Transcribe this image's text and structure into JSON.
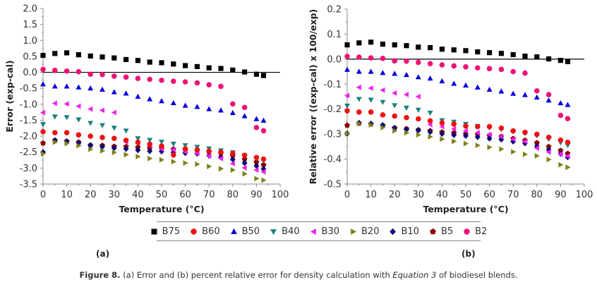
{
  "legend": {
    "items": [
      {
        "name": "B75",
        "color": "#000000",
        "marker": "square"
      },
      {
        "name": "B60",
        "color": "#ee1111",
        "marker": "circle"
      },
      {
        "name": "B50",
        "color": "#0000dd",
        "marker": "triangle-up"
      },
      {
        "name": "B40",
        "color": "#1a7f7f",
        "marker": "triangle-down"
      },
      {
        "name": "B30",
        "color": "#ee22ee",
        "marker": "triangle-left"
      },
      {
        "name": "B20",
        "color": "#808019",
        "marker": "triangle-right"
      },
      {
        "name": "B10",
        "color": "#0a0a7a",
        "marker": "diamond"
      },
      {
        "name": "B5",
        "color": "#8b0000",
        "marker": "pentagon"
      },
      {
        "name": "B2",
        "color": "#ee1177",
        "marker": "circle"
      }
    ]
  },
  "panel_labels": {
    "a": "(a)",
    "b": "(b)"
  },
  "caption": {
    "figure": "Figure 8.",
    "text_before": " (a) Error and (b) percent relative error for density calculation with ",
    "emphasis": "Equation 3",
    "text_after": " of biodiesel blends."
  },
  "chart_data": [
    {
      "id": "a",
      "type": "scatter",
      "title": "",
      "xlabel": "Temperature (°C)",
      "ylabel": "Error (exp-cal)",
      "xlim": [
        0,
        100
      ],
      "ylim": [
        -3.5,
        2.0
      ],
      "xticks": [
        0,
        10,
        20,
        30,
        40,
        50,
        60,
        70,
        80,
        90,
        100
      ],
      "yticks": [
        2.0,
        1.5,
        1.0,
        0.5,
        0.0,
        -0.5,
        -1.0,
        -1.5,
        -2.0,
        -2.5,
        -3.0,
        -3.5
      ],
      "ytick_labels": [
        "2.0",
        "1.5",
        "1.0",
        "0.5",
        "0.0",
        "-0.5",
        "-1.0",
        "-1.5",
        "-2.0",
        "-2.5",
        "-3.0",
        "-3.5"
      ],
      "zero_line": true,
      "grid": false,
      "legend_position": "bottom",
      "x": [
        0,
        5,
        10,
        15,
        20,
        25,
        30,
        35,
        40,
        45,
        50,
        55,
        60,
        65,
        70,
        75,
        80,
        85,
        90,
        93
      ],
      "series": [
        {
          "name": "B75",
          "values": [
            0.53,
            0.59,
            0.61,
            0.55,
            0.51,
            0.48,
            0.45,
            0.4,
            0.37,
            0.32,
            0.3,
            0.26,
            0.21,
            0.18,
            0.14,
            0.12,
            0.07,
            0.01,
            -0.06,
            -0.1
          ]
        },
        {
          "name": "B60",
          "values": [
            -1.86,
            -1.89,
            -1.89,
            -1.96,
            -2.0,
            -2.04,
            -2.07,
            -2.13,
            -2.19,
            -2.25,
            -2.31,
            -2.59,
            -2.4,
            -2.43,
            -2.47,
            -2.5,
            -2.54,
            -2.6,
            -2.67,
            -2.72
          ]
        },
        {
          "name": "B50",
          "values": [
            -0.37,
            -0.44,
            -0.44,
            -0.47,
            -0.5,
            -0.54,
            -0.62,
            -0.66,
            -0.76,
            -0.84,
            -0.9,
            -0.96,
            -1.04,
            -1.08,
            -1.15,
            -1.19,
            -1.27,
            -1.37,
            -1.46,
            -1.51
          ]
        },
        {
          "name": "B40",
          "values": [
            -1.63,
            -1.39,
            -1.41,
            -1.48,
            -1.59,
            -1.66,
            -1.74,
            -1.83,
            -2.07,
            -2.12,
            -2.18,
            -2.24,
            -2.29,
            -2.34,
            -2.39,
            -2.45,
            -2.51,
            -2.61,
            -2.7,
            -2.76
          ]
        },
        {
          "name": "B30",
          "values": [
            -1.26,
            -0.97,
            -0.99,
            -1.06,
            -1.15,
            -1.19,
            -1.26,
            -2.18,
            -2.21,
            -2.29,
            -2.4,
            -2.43,
            -2.49,
            -2.54,
            -2.62,
            -2.7,
            -2.86,
            -2.99,
            -3.06,
            -3.12
          ]
        },
        {
          "name": "B20",
          "values": [
            -2.55,
            -2.19,
            -2.23,
            -2.3,
            -2.41,
            -2.46,
            -2.51,
            -2.58,
            -2.64,
            -2.7,
            -2.74,
            -2.8,
            -2.84,
            -2.88,
            -2.95,
            -3.02,
            -3.06,
            -3.18,
            -3.33,
            -3.38
          ]
        },
        {
          "name": "B10",
          "values": [
            -2.5,
            -2.13,
            -2.16,
            -2.21,
            -2.29,
            -2.33,
            -2.37,
            -2.4,
            -2.44,
            -2.47,
            -2.48,
            -2.51,
            -2.53,
            -2.55,
            -2.61,
            -2.66,
            -2.73,
            -2.84,
            -2.93,
            -3.03
          ]
        },
        {
          "name": "B5",
          "values": [
            -2.22,
            -2.13,
            -2.16,
            -2.19,
            -2.28,
            -2.29,
            -2.32,
            -2.33,
            -2.35,
            -2.37,
            -2.39,
            -2.41,
            -2.43,
            -2.45,
            -2.49,
            -2.54,
            -2.61,
            -2.72,
            -2.81,
            -2.9
          ]
        },
        {
          "name": "B2",
          "values": [
            0.09,
            0.06,
            0.04,
            0.02,
            -0.06,
            -0.07,
            -0.12,
            -0.15,
            -0.19,
            -0.22,
            -0.25,
            -0.28,
            -0.3,
            -0.33,
            -0.39,
            -0.44,
            -0.99,
            -1.1,
            -1.73,
            -1.83
          ]
        }
      ]
    },
    {
      "id": "b",
      "type": "scatter",
      "title": "",
      "xlabel": "Temperature (°C)",
      "ylabel": "Relative error ((exp-cal) x 100/exp)",
      "xlim": [
        0,
        100
      ],
      "ylim": [
        -0.5,
        0.2
      ],
      "xticks": [
        0,
        10,
        20,
        30,
        40,
        50,
        60,
        70,
        80,
        90,
        100
      ],
      "yticks": [
        0.2,
        0.1,
        0.0,
        -0.1,
        -0.2,
        -0.3,
        -0.4,
        -0.5
      ],
      "ytick_labels": [
        "0.2",
        "0.1",
        "0.0",
        "-0.1",
        "-0.2",
        "-0.3",
        "-0.4",
        "-0.5"
      ],
      "zero_line": true,
      "grid": false,
      "legend_position": "bottom",
      "x": [
        0,
        5,
        10,
        15,
        20,
        25,
        30,
        35,
        40,
        45,
        50,
        55,
        60,
        65,
        70,
        75,
        80,
        85,
        90,
        93
      ],
      "series": [
        {
          "name": "B75",
          "values": [
            0.057,
            0.065,
            0.068,
            0.06,
            0.057,
            0.054,
            0.048,
            0.046,
            0.04,
            0.037,
            0.034,
            0.029,
            0.026,
            0.023,
            0.018,
            0.012,
            0.009,
            0.001,
            -0.005,
            -0.01
          ]
        },
        {
          "name": "B60",
          "values": [
            -0.207,
            -0.212,
            -0.212,
            -0.223,
            -0.228,
            -0.234,
            -0.239,
            -0.247,
            -0.255,
            -0.26,
            -0.268,
            -0.27,
            -0.27,
            -0.276,
            -0.287,
            -0.293,
            -0.301,
            -0.313,
            -0.324,
            -0.333
          ]
        },
        {
          "name": "B50",
          "values": [
            -0.042,
            -0.05,
            -0.05,
            -0.055,
            -0.058,
            -0.063,
            -0.072,
            -0.077,
            -0.088,
            -0.098,
            -0.105,
            -0.113,
            -0.122,
            -0.129,
            -0.138,
            -0.143,
            -0.153,
            -0.165,
            -0.176,
            -0.183
          ]
        },
        {
          "name": "B40",
          "values": [
            -0.187,
            -0.16,
            -0.163,
            -0.172,
            -0.185,
            -0.195,
            -0.203,
            -0.215,
            -0.245,
            -0.251,
            -0.26,
            -0.268,
            -0.275,
            -0.281,
            -0.29,
            -0.297,
            -0.306,
            -0.32,
            -0.334,
            -0.345
          ]
        },
        {
          "name": "B30",
          "values": [
            -0.146,
            -0.113,
            -0.116,
            -0.124,
            -0.136,
            -0.142,
            -0.15,
            -0.262,
            -0.27,
            -0.279,
            -0.287,
            -0.294,
            -0.301,
            -0.31,
            -0.32,
            -0.33,
            -0.356,
            -0.372,
            -0.38,
            -0.388
          ]
        },
        {
          "name": "B20",
          "values": [
            -0.298,
            -0.258,
            -0.263,
            -0.274,
            -0.287,
            -0.295,
            -0.303,
            -0.311,
            -0.32,
            -0.329,
            -0.338,
            -0.345,
            -0.353,
            -0.36,
            -0.371,
            -0.381,
            -0.387,
            -0.402,
            -0.423,
            -0.433
          ]
        },
        {
          "name": "B10",
          "values": [
            -0.298,
            -0.255,
            -0.258,
            -0.264,
            -0.276,
            -0.281,
            -0.285,
            -0.292,
            -0.299,
            -0.304,
            -0.307,
            -0.312,
            -0.318,
            -0.322,
            -0.33,
            -0.337,
            -0.349,
            -0.363,
            -0.379,
            -0.393
          ]
        },
        {
          "name": "B5",
          "values": [
            -0.265,
            -0.257,
            -0.26,
            -0.265,
            -0.275,
            -0.279,
            -0.283,
            -0.287,
            -0.292,
            -0.295,
            -0.299,
            -0.302,
            -0.305,
            -0.31,
            -0.318,
            -0.325,
            -0.335,
            -0.35,
            -0.366,
            -0.378
          ]
        },
        {
          "name": "B2",
          "values": [
            0.011,
            0.008,
            0.005,
            0.003,
            -0.007,
            -0.008,
            -0.013,
            -0.018,
            -0.023,
            -0.027,
            -0.031,
            -0.035,
            -0.038,
            -0.041,
            -0.05,
            -0.056,
            -0.127,
            -0.142,
            -0.225,
            -0.238
          ]
        }
      ]
    }
  ]
}
